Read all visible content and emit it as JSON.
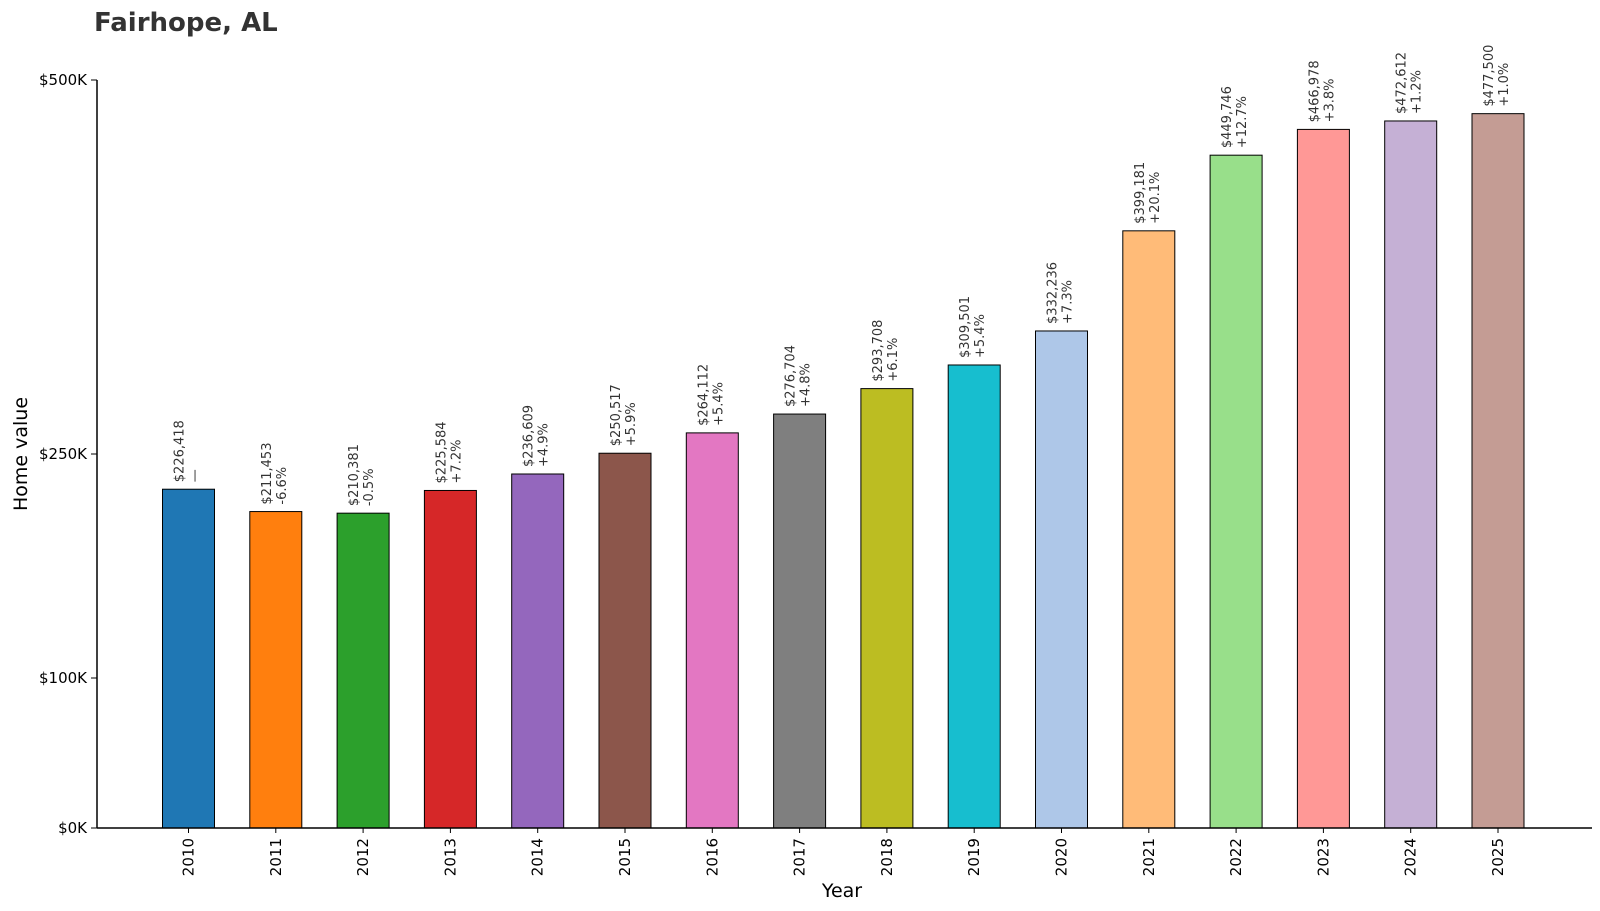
{
  "chart_data": {
    "type": "bar",
    "title": "Fairhope, AL",
    "xlabel": "Year",
    "ylabel": "Home value",
    "categories": [
      "2010",
      "2011",
      "2012",
      "2013",
      "2014",
      "2015",
      "2016",
      "2017",
      "2018",
      "2019",
      "2020",
      "2021",
      "2022",
      "2023",
      "2024",
      "2025"
    ],
    "values": [
      226418,
      211453,
      210381,
      225584,
      236609,
      250517,
      264112,
      276704,
      293708,
      309501,
      332236,
      399181,
      449746,
      466978,
      472612,
      477500
    ],
    "value_labels": [
      "$226,418",
      "$211,453",
      "$210,381",
      "$225,584",
      "$236,609",
      "$250,517",
      "$264,112",
      "$276,704",
      "$293,708",
      "$309,501",
      "$332,236",
      "$399,181",
      "$449,746",
      "$466,978",
      "$472,612",
      "$477,500"
    ],
    "change_labels": [
      "—",
      "-6.6%",
      "-0.5%",
      "+7.2%",
      "+4.9%",
      "+5.9%",
      "+5.4%",
      "+4.8%",
      "+6.1%",
      "+5.4%",
      "+7.3%",
      "+20.1%",
      "+12.7%",
      "+3.8%",
      "+1.2%",
      "+1.0%"
    ],
    "colors": [
      "#1f77b4",
      "#ff7f0e",
      "#2ca02c",
      "#d62728",
      "#9467bd",
      "#8c564b",
      "#e377c2",
      "#7f7f7f",
      "#bcbd22",
      "#17becf",
      "#aec7e8",
      "#ffbb78",
      "#98df8a",
      "#ff9896",
      "#c5b0d5",
      "#c49c94"
    ],
    "ylim": [
      0,
      500000
    ],
    "yticks": [
      0,
      100000,
      250000,
      500000
    ],
    "ytick_labels": [
      "$0K",
      "$100K",
      "$250K",
      "$500K"
    ],
    "grid": false
  }
}
